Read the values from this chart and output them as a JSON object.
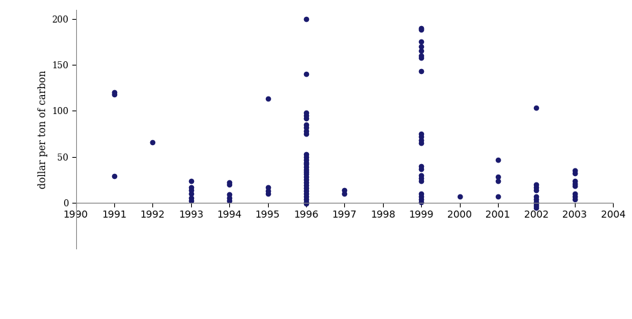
{
  "ylabel": "dollar per ton of carbon",
  "dot_color": "#1a1a6e",
  "background_color": "#ffffff",
  "xlim": [
    1990,
    2004
  ],
  "ylim": [
    -50,
    210
  ],
  "yticks": [
    0,
    50,
    100,
    150,
    200
  ],
  "xticks": [
    1990,
    1991,
    1992,
    1993,
    1994,
    1995,
    1996,
    1997,
    1998,
    1999,
    2000,
    2001,
    2002,
    2003,
    2004
  ],
  "data": {
    "1991": [
      29,
      120,
      118
    ],
    "1992": [
      66
    ],
    "1993": [
      2,
      5,
      10,
      14,
      17,
      24
    ],
    "1994": [
      2,
      5,
      9,
      20,
      22
    ],
    "1995": [
      10,
      13,
      17,
      113
    ],
    "1996": [
      200,
      140,
      98,
      95,
      92,
      85,
      82,
      78,
      75,
      53,
      50,
      47,
      44,
      42,
      39,
      36,
      34,
      31,
      28,
      25,
      22,
      19,
      16,
      13,
      10,
      7,
      4,
      1,
      -1
    ],
    "1997": [
      10,
      14
    ],
    "1999": [
      190,
      188,
      175,
      170,
      165,
      160,
      158,
      143,
      75,
      72,
      68,
      65,
      40,
      37,
      30,
      27,
      24,
      10,
      7,
      4,
      1
    ],
    "2000": [
      7
    ],
    "2001": [
      47,
      28,
      24,
      7
    ],
    "2002": [
      103,
      20,
      17,
      14,
      7,
      4,
      1,
      -1,
      -3,
      -5
    ],
    "2003": [
      35,
      32,
      24,
      21,
      18,
      10,
      7,
      4
    ]
  }
}
